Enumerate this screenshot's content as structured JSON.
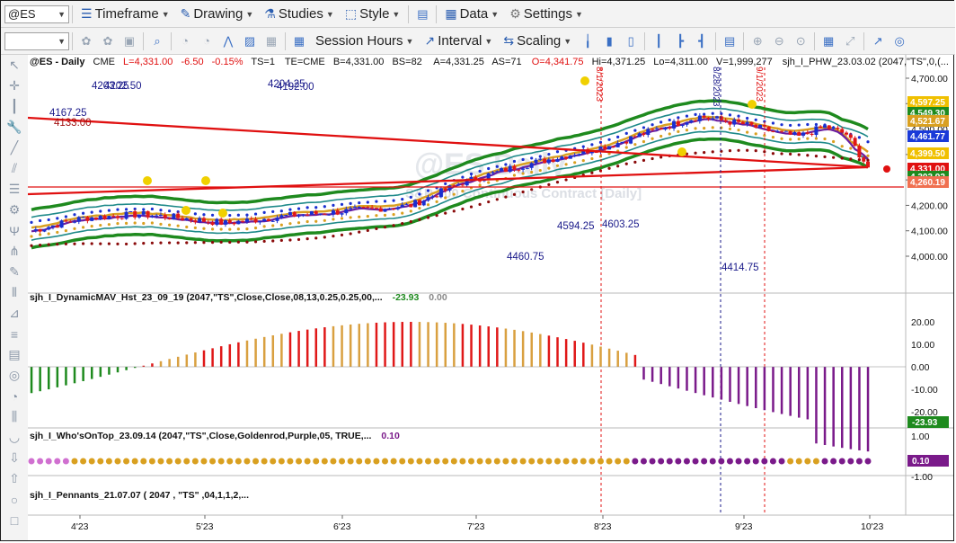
{
  "toolbar1": {
    "symbol": "@ES",
    "menus": [
      {
        "icon": "timeframe-icon",
        "label": "Timeframe"
      },
      {
        "icon": "drawing-icon",
        "label": "Drawing"
      },
      {
        "icon": "studies-icon",
        "label": "Studies"
      },
      {
        "icon": "style-icon",
        "label": "Style"
      },
      {
        "icon": "data-icon",
        "label": "Data"
      },
      {
        "icon": "settings-icon",
        "label": "Settings"
      }
    ]
  },
  "toolbar2": {
    "session_hours": "Session Hours",
    "interval": "Interval",
    "scaling": "Scaling"
  },
  "price_header": {
    "symbol": "@ES - Daily",
    "exchange": "CME",
    "last": "L=4,331.00",
    "change": "-6.50",
    "change_pct": "-0.15%",
    "ts": "TS=1",
    "te": "TE=CME",
    "bid": "B=4,331.00",
    "bid_size": "BS=82",
    "ask": "A=4,331.25",
    "ask_size": "AS=71",
    "open": "O=4,341.75",
    "high": "Hi=4,371.25",
    "low": "Lo=4,311.00",
    "volume": "V=1,999,277",
    "study": "sjh_I_PHW_23.03.02 (2047,\"TS\",0,(..."
  },
  "watermark": {
    "title": "@ES Daily",
    "subtitle": "S&P 500 Continuous Contract [Daily]"
  },
  "annotations": {
    "a1": "4167.25",
    "a2": "4133.00",
    "a3": "4203.25",
    "a4": "4202.50",
    "a5": "4204.25",
    "a6": "4192.00",
    "a7": "4594.25",
    "a8": "4603.25",
    "a9": "4460.75",
    "a10": "4414.75",
    "v1": "8/1/2023",
    "v2": "8/28/2023",
    "v3": "9/1/2023"
  },
  "price_axis": {
    "ticks": [
      "4,700.00",
      "4,600.00",
      "4,500.00",
      "4,400.00",
      "4,300.00",
      "4,200.00",
      "4,100.00",
      "4,000.00"
    ],
    "tags": [
      {
        "label": "4,597.25",
        "color": "#f0c000"
      },
      {
        "label": "4,549.30",
        "color": "#1e8a1e"
      },
      {
        "label": "4,521.67",
        "color": "#d9a020"
      },
      {
        "label": "4,461.77",
        "color": "#1a3ad8"
      },
      {
        "label": "4,399.50",
        "color": "#f0c000"
      },
      {
        "label": "4,331.00",
        "color": "#e01010"
      },
      {
        "label": "4,303.92",
        "color": "#1e8a1e"
      },
      {
        "label": "4,260.19",
        "color": "#f07050"
      }
    ]
  },
  "panel2": {
    "title": "sjh_I_DynamicMAV_Hst_23_09_19 (2047,\"TS\",Close,Close,08,13,0.25,0.25,00,...",
    "value1": "-23.93",
    "value2": "0.00",
    "ticks": [
      "20.00",
      "10.00",
      "0.00",
      "-10.00",
      "-20.00"
    ],
    "tag": "-23.93"
  },
  "panel3": {
    "title": "sjh_I_Who'sOnTop_23.09.14 (2047,\"TS\",Close,Goldenrod,Purple,05,  TRUE,...",
    "value1": "0.10",
    "ticks": [
      "1.00",
      "-1.00"
    ],
    "tag": "0.10"
  },
  "panel4": {
    "title": "sjh_I_Pennants_21.07.07 (  2047 ,  \"TS\" ,04,1,1,2,..."
  },
  "time_axis": [
    "4'23",
    "5'23",
    "6'23",
    "7'23",
    "8'23",
    "9'23",
    "10'23"
  ],
  "colors": {
    "up": "#1a2fd0",
    "down": "#e01818",
    "green_band": "#1e8a1e",
    "teal_band": "#1f8a8a",
    "gold_ma": "#d9a020",
    "purple_ma": "#6a1ea0"
  }
}
